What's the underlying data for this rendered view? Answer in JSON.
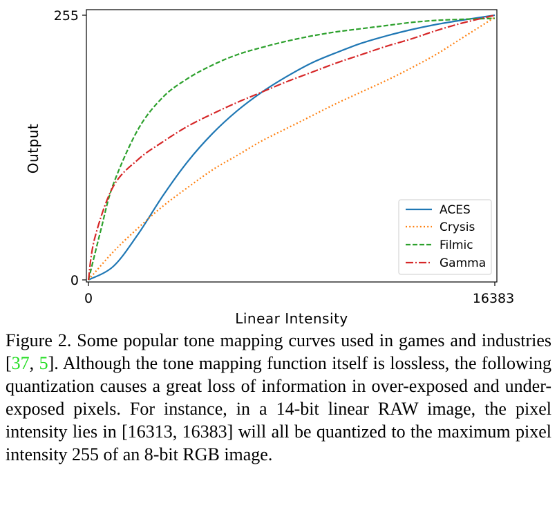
{
  "chart_data": {
    "type": "line",
    "title": "",
    "xlabel": "Linear Intensity",
    "ylabel": "Output",
    "xlim": [
      0,
      16383
    ],
    "ylim": [
      0,
      255
    ],
    "xticks": [
      "0",
      "16383"
    ],
    "yticks": [
      "0",
      "255"
    ],
    "grid": false,
    "legend_position": "lower-right",
    "series": [
      {
        "name": "ACES",
        "color": "#1f77b4",
        "style": "solid",
        "x": [
          0,
          1000,
          2000,
          3000,
          4000,
          5000,
          6000,
          7000,
          8000,
          9000,
          10000,
          11000,
          12000,
          13000,
          14000,
          15000,
          16383
        ],
        "y": [
          0,
          13,
          44,
          81,
          114,
          141,
          163,
          181,
          196,
          209,
          219,
          228,
          235,
          241,
          246,
          250,
          255
        ]
      },
      {
        "name": "Crysis",
        "color": "#ff7f0e",
        "style": "dotted",
        "x": [
          0,
          1000,
          2000,
          3000,
          4000,
          5000,
          6000,
          7000,
          8000,
          9000,
          10000,
          11000,
          12000,
          13000,
          14000,
          15000,
          16383
        ],
        "y": [
          0,
          27,
          50,
          71,
          89,
          106,
          120,
          134,
          146,
          158,
          170,
          181,
          192,
          204,
          217,
          232,
          253
        ]
      },
      {
        "name": "Filmic",
        "color": "#2ca02c",
        "style": "dashed",
        "x": [
          0,
          500,
          1000,
          2000,
          3000,
          4000,
          5000,
          6000,
          7000,
          8000,
          9000,
          10000,
          11000,
          12000,
          13000,
          14000,
          15000,
          16383
        ],
        "y": [
          0,
          48,
          92,
          145,
          176,
          194,
          207,
          217,
          224,
          230,
          235,
          239,
          242,
          245,
          248,
          250,
          251,
          252
        ]
      },
      {
        "name": "Gamma",
        "color": "#d62728",
        "style": "dashdot",
        "x": [
          0,
          250,
          1000,
          2000,
          3000,
          4000,
          5000,
          6000,
          7000,
          8000,
          9000,
          10000,
          11000,
          12000,
          13000,
          14000,
          15000,
          16383
        ],
        "y": [
          0,
          40,
          90,
          116,
          133,
          148,
          160,
          171,
          181,
          191,
          200,
          209,
          217,
          225,
          232,
          240,
          247,
          255
        ]
      }
    ]
  },
  "caption": {
    "text_before": "Figure 2. Some popular tone mapping curves used in games and industries  [",
    "cite1": "37",
    "text_between": ", ",
    "cite2": "5",
    "text_after": "].  Although the tone mapping function itself is lossless, the following quantization causes a great loss of information in over-exposed and under-exposed pixels.  For instance, in a 14-bit linear RAW image, the pixel intensity lies in [16313, 16383] will all be quantized to the maximum pixel intensity 255 of an 8-bit RGB image."
  }
}
